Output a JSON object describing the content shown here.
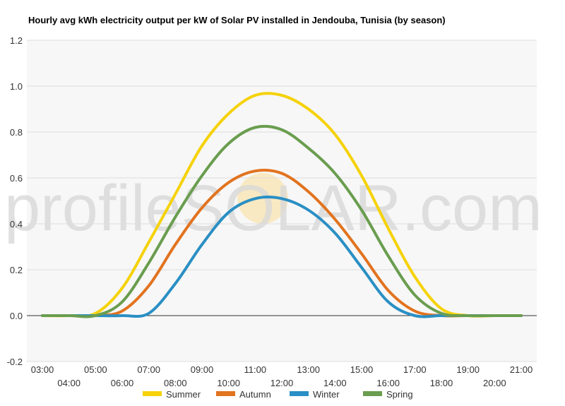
{
  "chart_data": {
    "type": "line",
    "title": "Hourly avg kWh electricity output per kW of Solar PV installed in Jendouba, Tunisia (by season)",
    "watermark": "profileSOLAR.com",
    "xlabel": "",
    "ylabel": "",
    "ylim": [
      -0.2,
      1.2
    ],
    "yticks": [
      "-0.2",
      "0.0",
      "0.2",
      "0.4",
      "0.6",
      "0.8",
      "1.0",
      "1.2"
    ],
    "xticks": [
      "03:00",
      "04:00",
      "05:00",
      "06:00",
      "07:00",
      "08:00",
      "09:00",
      "10:00",
      "11:00",
      "12:00",
      "13:00",
      "14:00",
      "15:00",
      "16:00",
      "17:00",
      "18:00",
      "19:00",
      "20:00",
      "21:00"
    ],
    "x": [
      3,
      4,
      5,
      6,
      7,
      8,
      9,
      10,
      11,
      12,
      13,
      14,
      15,
      16,
      17,
      18,
      19,
      20,
      21
    ],
    "grid": true,
    "legend_position": "bottom",
    "series": [
      {
        "name": "Summer",
        "color": "#f5d20a",
        "values": [
          0,
          0,
          0.01,
          0.12,
          0.32,
          0.53,
          0.74,
          0.88,
          0.96,
          0.96,
          0.9,
          0.79,
          0.61,
          0.38,
          0.17,
          0.03,
          0,
          0,
          0
        ]
      },
      {
        "name": "Autumn",
        "color": "#e2731f",
        "values": [
          0,
          0,
          0,
          0.02,
          0.13,
          0.31,
          0.47,
          0.58,
          0.63,
          0.62,
          0.54,
          0.42,
          0.27,
          0.11,
          0.02,
          0,
          0,
          0,
          0
        ]
      },
      {
        "name": "Winter",
        "color": "#2a8fc4",
        "values": [
          0,
          0,
          0,
          0,
          0.01,
          0.14,
          0.31,
          0.45,
          0.51,
          0.51,
          0.46,
          0.36,
          0.21,
          0.06,
          0,
          0,
          0,
          0,
          0
        ]
      },
      {
        "name": "Spring",
        "color": "#6a9d4f",
        "values": [
          0,
          0,
          0,
          0.06,
          0.23,
          0.43,
          0.61,
          0.75,
          0.82,
          0.81,
          0.73,
          0.62,
          0.46,
          0.26,
          0.09,
          0.01,
          0,
          0,
          0
        ]
      }
    ]
  }
}
